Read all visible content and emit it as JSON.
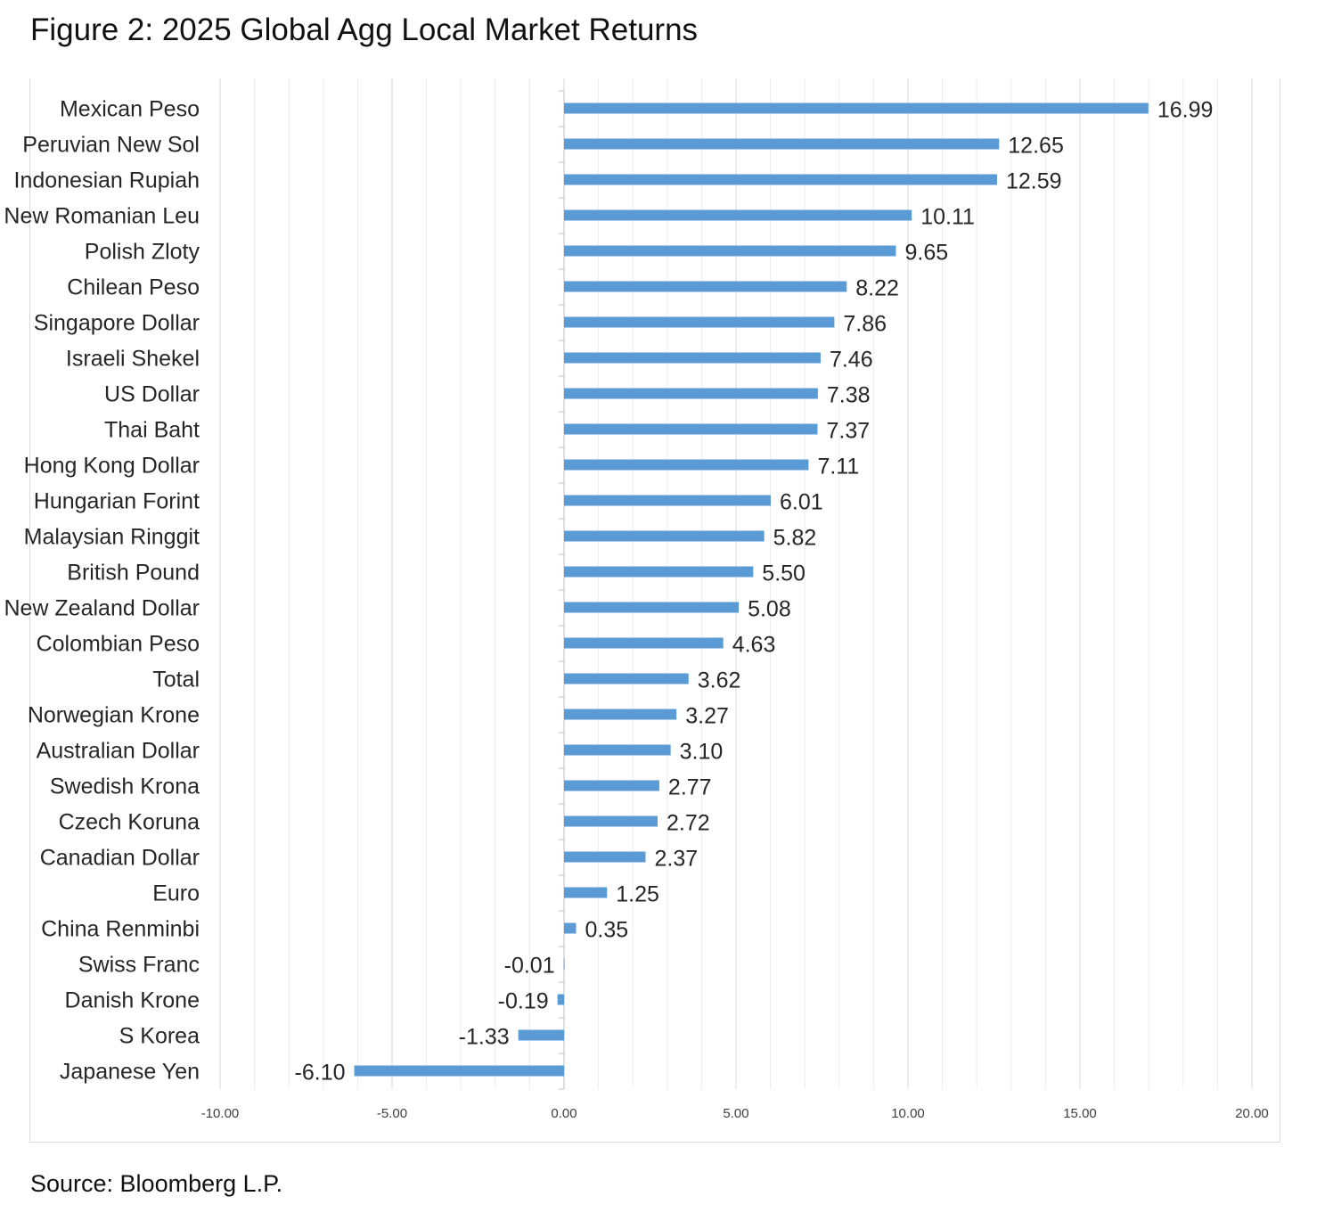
{
  "title": "Figure 2: 2025 Global Agg Local Market Returns",
  "source": "Source: Bloomberg L.P.",
  "chart_data": {
    "type": "bar",
    "orientation": "horizontal",
    "title": "Figure 2: 2025 Global Agg Local Market Returns",
    "categories": [
      "Mexican Peso",
      "Peruvian New Sol",
      "Indonesian Rupiah",
      "New Romanian Leu",
      "Polish Zloty",
      "Chilean Peso",
      "Singapore Dollar",
      "Israeli Shekel",
      "US Dollar",
      "Thai Baht",
      "Hong Kong Dollar",
      "Hungarian Forint",
      "Malaysian Ringgit",
      "British Pound",
      "New Zealand Dollar",
      "Colombian Peso",
      "Total",
      "Norwegian Krone",
      "Australian Dollar",
      "Swedish Krona",
      "Czech Koruna",
      "Canadian Dollar",
      "Euro",
      "China Renminbi",
      "Swiss Franc",
      "Danish Krone",
      "S Korea",
      "Japanese Yen"
    ],
    "values": [
      16.99,
      12.65,
      12.59,
      10.11,
      9.65,
      8.22,
      7.86,
      7.46,
      7.38,
      7.37,
      7.11,
      6.01,
      5.82,
      5.5,
      5.08,
      4.63,
      3.62,
      3.27,
      3.1,
      2.77,
      2.72,
      2.37,
      1.25,
      0.35,
      -0.01,
      -0.19,
      -1.33,
      -6.1
    ],
    "data_labels": [
      "16.99",
      "12.65",
      "12.59",
      "10.11",
      "9.65",
      "8.22",
      "7.86",
      "7.46",
      "7.38",
      "7.37",
      "7.11",
      "6.01",
      "5.82",
      "5.50",
      "5.08",
      "4.63",
      "3.62",
      "3.27",
      "3.10",
      "2.77",
      "2.72",
      "2.37",
      "1.25",
      "0.35",
      "-0.01",
      "-0.19",
      "-1.33",
      "-6.10"
    ],
    "xticks": [
      "-10.00",
      "-5.00",
      "0.00",
      "5.00",
      "10.00",
      "15.00",
      "20.00"
    ],
    "xlim": [
      -10,
      20
    ],
    "grid": true,
    "bar_color": "#5b9bd5"
  }
}
